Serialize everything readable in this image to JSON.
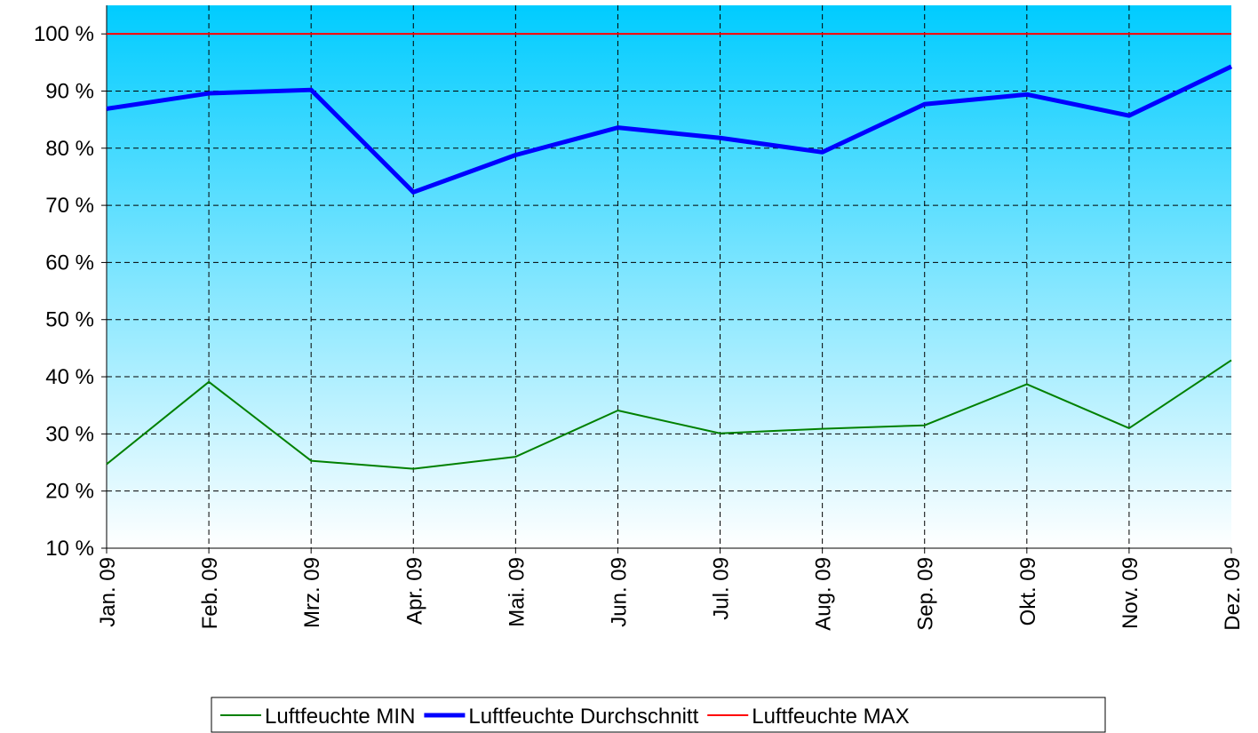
{
  "chart_data": {
    "type": "line",
    "categories": [
      "Jan. 09",
      "Feb. 09",
      "Mrz. 09",
      "Apr. 09",
      "Mai. 09",
      "Jun. 09",
      "Jul. 09",
      "Aug. 09",
      "Sep. 09",
      "Okt. 09",
      "Nov. 09",
      "Dez. 09"
    ],
    "series": [
      {
        "name": "Luftfeuchte MIN",
        "color": "#008000",
        "width": 2,
        "values": [
          24.7,
          39.1,
          25.3,
          23.9,
          26.0,
          34.1,
          30.1,
          30.9,
          31.5,
          38.7,
          31.0,
          42.9
        ]
      },
      {
        "name": "Luftfeuchte Durchschnitt",
        "color": "#0000ff",
        "width": 5,
        "values": [
          86.9,
          89.6,
          90.2,
          72.3,
          78.8,
          83.6,
          81.8,
          79.3,
          87.7,
          89.4,
          85.7,
          94.3
        ]
      },
      {
        "name": "Luftfeuchte MAX",
        "color": "#ff0000",
        "width": 2,
        "values": [
          100,
          100,
          100,
          100,
          100,
          100,
          100,
          100,
          100,
          100,
          100,
          100
        ]
      }
    ],
    "ylim": [
      10,
      105
    ],
    "yticks": [
      {
        "value": 10,
        "label": "10 %"
      },
      {
        "value": 20,
        "label": "20 %"
      },
      {
        "value": 30,
        "label": "30 %"
      },
      {
        "value": 40,
        "label": "40 %"
      },
      {
        "value": 50,
        "label": "50 %"
      },
      {
        "value": 60,
        "label": "60 %"
      },
      {
        "value": 70,
        "label": "70 %"
      },
      {
        "value": 80,
        "label": "80 %"
      },
      {
        "value": 90,
        "label": "90 %"
      },
      {
        "value": 100,
        "label": "100 %"
      }
    ],
    "grid": true,
    "legend": "bottom"
  }
}
